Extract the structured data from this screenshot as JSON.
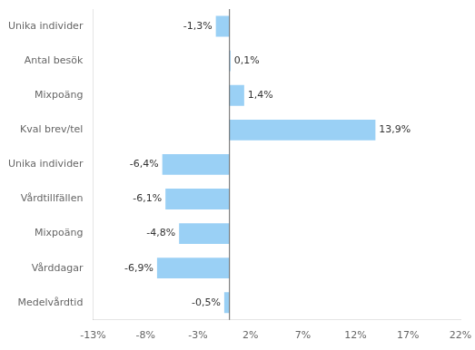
{
  "chart_data": {
    "type": "bar",
    "orientation": "horizontal",
    "categories": [
      "Unika individer",
      "Antal besök",
      "Mixpoäng",
      "Kval brev/tel",
      "Unika individer",
      "Vårdtillfällen",
      "Mixpoäng",
      "Vårddagar",
      "Medelvårdtid"
    ],
    "values": [
      -1.3,
      0.1,
      1.4,
      13.9,
      -6.4,
      -6.1,
      -4.8,
      -6.9,
      -0.5
    ],
    "value_labels": [
      "-1,3%",
      "0,1%",
      "1,4%",
      "13,9%",
      "-6,4%",
      "-6,1%",
      "-4,8%",
      "-6,9%",
      "-0,5%"
    ],
    "data_labels": true,
    "xlim": [
      -13,
      22
    ],
    "xticks": [
      {
        "value": -13,
        "label": "-13%"
      },
      {
        "value": -8,
        "label": "-8%"
      },
      {
        "value": -3,
        "label": "-3%"
      },
      {
        "value": 2,
        "label": "2%"
      },
      {
        "value": 7,
        "label": "7%"
      },
      {
        "value": 12,
        "label": "12%"
      },
      {
        "value": 17,
        "label": "17%"
      },
      {
        "value": 22,
        "label": "22%"
      }
    ],
    "grid": false
  }
}
